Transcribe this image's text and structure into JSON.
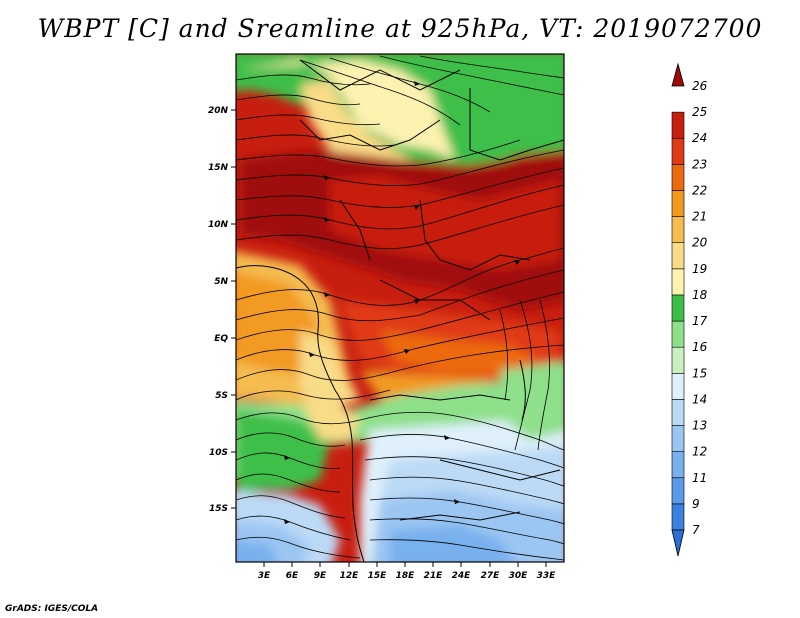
{
  "title": "WBPT [C] and Sreamline at 925hPa, VT: 2019072700",
  "credit": "GrADS: IGES/COLA",
  "map": {
    "lat_ticks": [
      "20N",
      "15N",
      "10N",
      "5N",
      "EQ",
      "5S",
      "10S",
      "15S"
    ],
    "lon_ticks": [
      "3E",
      "6E",
      "9E",
      "12E",
      "15E",
      "18E",
      "21E",
      "24E",
      "27E",
      "30E",
      "33E"
    ]
  },
  "colorbar": {
    "labels": [
      "7",
      "9",
      "11",
      "12",
      "13",
      "14",
      "15",
      "16",
      "17",
      "18",
      "19",
      "20",
      "21",
      "22",
      "23",
      "24",
      "25",
      "26"
    ],
    "colors": [
      "#2a6fd6",
      "#3b82e0",
      "#5a9ae8",
      "#79b0ee",
      "#9bc6f2",
      "#bcdaf6",
      "#dff0fb",
      "#c8f0c0",
      "#8ee08a",
      "#3cbf4a",
      "#fdf2b0",
      "#f9dc88",
      "#f5bc50",
      "#f29a20",
      "#ec6a10",
      "#e03a14",
      "#c81e10",
      "#a00a0a"
    ]
  }
}
